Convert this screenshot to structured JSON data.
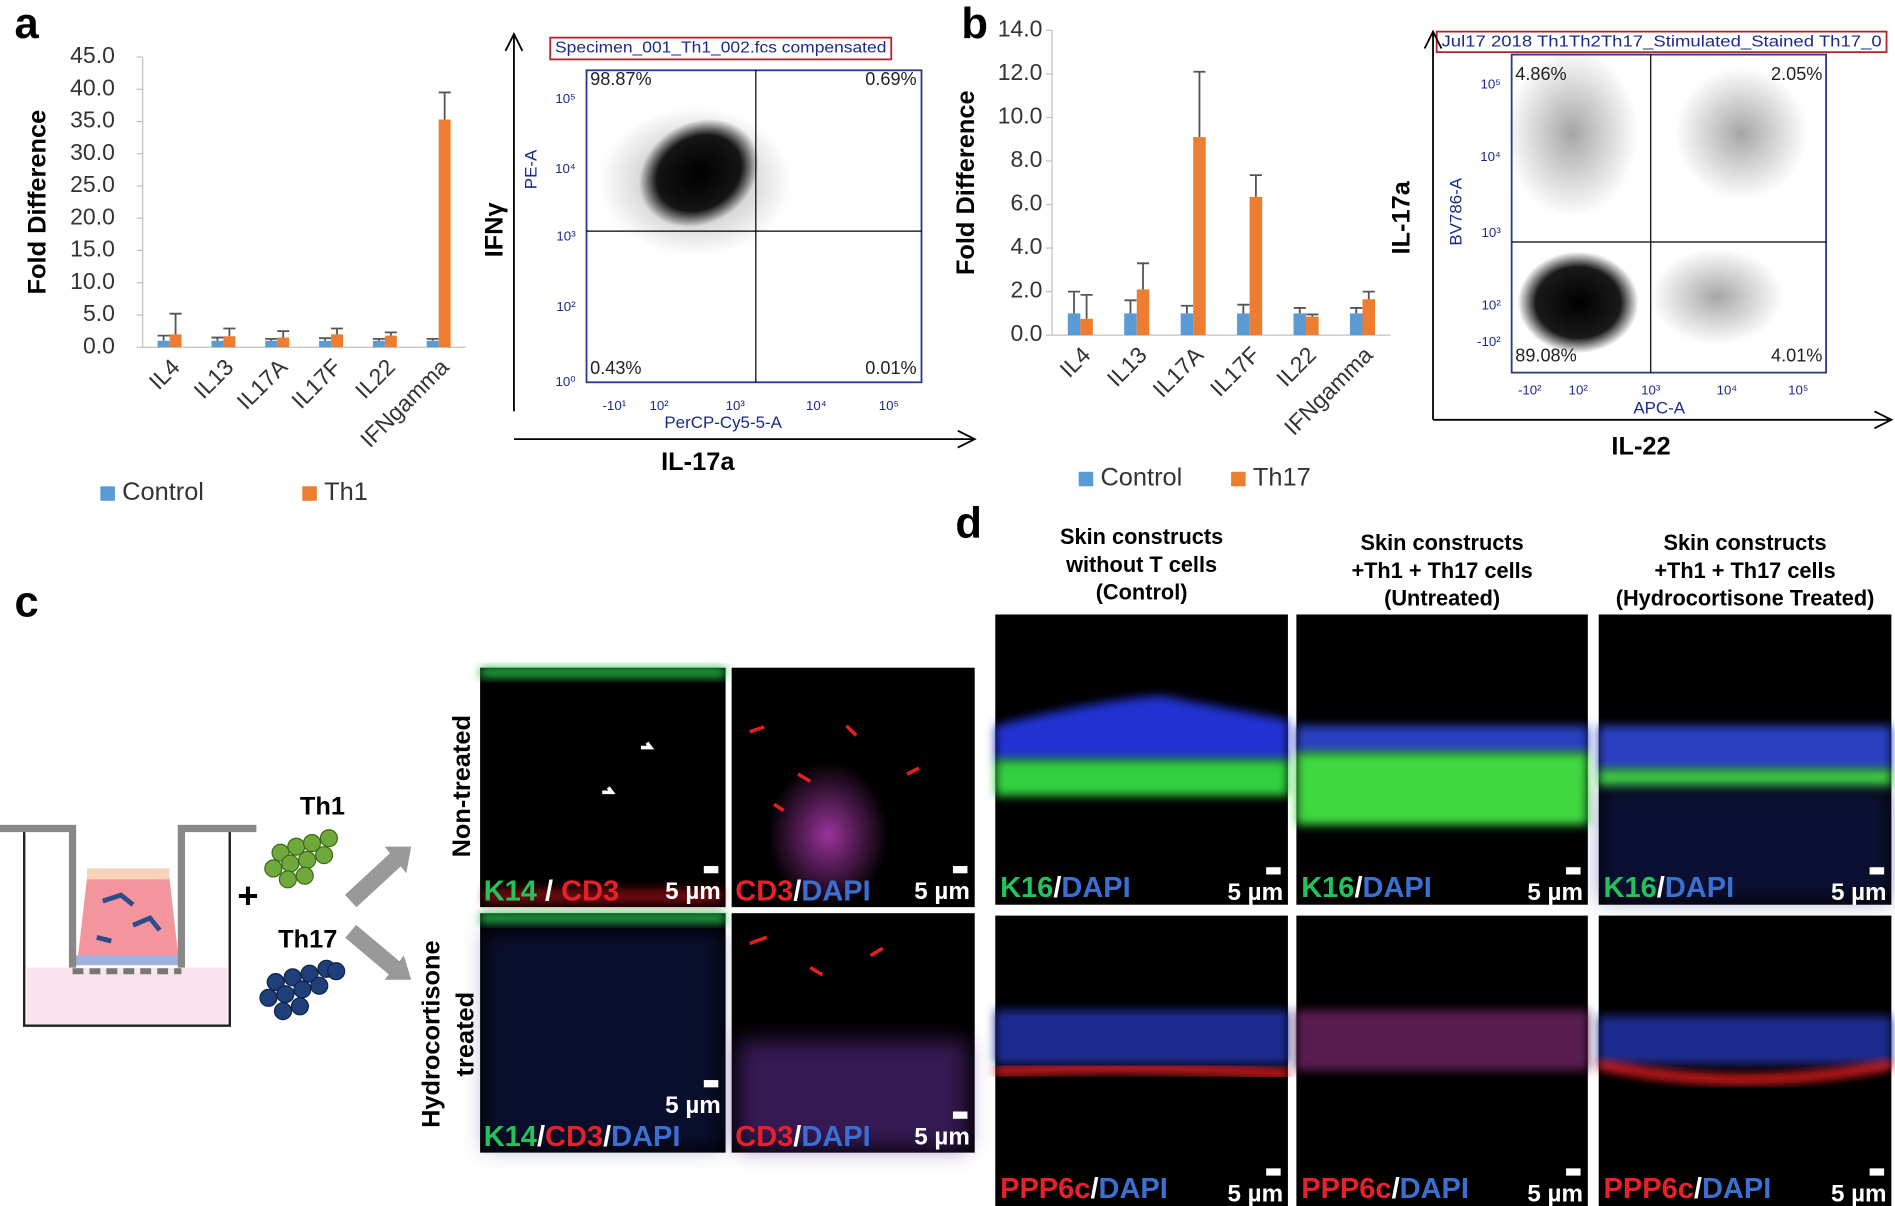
{
  "chart_data": [
    {
      "type": "bar",
      "ylabel": "Fold Difference",
      "legend": "bottom",
      "grid": false,
      "categories": [
        "IL4",
        "IL13",
        "IL17A",
        "IL17F",
        "IL22",
        "IFNgamma"
      ],
      "series": [
        {
          "name": "Control",
          "color": "#5b9bd5",
          "values": [
            1.0,
            1.0,
            1.0,
            1.0,
            1.0,
            1.0
          ],
          "errors": [
            0.8,
            0.5,
            0.3,
            0.4,
            0.3,
            0.3
          ]
        },
        {
          "name": "Th1",
          "color": "#ed7d31",
          "values": [
            2.0,
            1.7,
            1.5,
            2.0,
            1.8,
            35.3
          ],
          "errors": [
            3.2,
            1.2,
            1.0,
            0.9,
            0.5,
            4.2
          ]
        }
      ],
      "ylim": [
        0,
        45
      ],
      "yticks": [
        {
          "value": 0,
          "label": "0.0"
        },
        {
          "value": 5,
          "label": "5.0"
        },
        {
          "value": 10,
          "label": "10.0"
        },
        {
          "value": 15,
          "label": "15.0"
        },
        {
          "value": 20,
          "label": "20.0"
        },
        {
          "value": 25,
          "label": "25.0"
        },
        {
          "value": 30,
          "label": "30.0"
        },
        {
          "value": 35,
          "label": "35.0"
        },
        {
          "value": 40,
          "label": "40.0"
        },
        {
          "value": 45,
          "label": "45.0"
        }
      ]
    },
    {
      "type": "bar",
      "ylabel": "Fold Difference",
      "legend": "bottom",
      "grid": false,
      "categories": [
        "IL4",
        "IL13",
        "IL17A",
        "IL17F",
        "IL22",
        "IFNgamma"
      ],
      "series": [
        {
          "name": "Control",
          "color": "#5b9bd5",
          "values": [
            1.0,
            1.0,
            1.0,
            1.0,
            1.0,
            1.0
          ],
          "errors": [
            1.0,
            0.6,
            0.35,
            0.4,
            0.25,
            0.25
          ]
        },
        {
          "name": "Th17",
          "color": "#ed7d31",
          "values": [
            0.75,
            2.1,
            9.1,
            6.35,
            0.85,
            1.65
          ],
          "errors": [
            1.1,
            1.2,
            3.0,
            1.0,
            0.1,
            0.35
          ]
        }
      ],
      "ylim": [
        0,
        14
      ],
      "yticks": [
        {
          "value": 0,
          "label": "0.0"
        },
        {
          "value": 2,
          "label": "2.0"
        },
        {
          "value": 4,
          "label": "4.0"
        },
        {
          "value": 6,
          "label": "6.0"
        },
        {
          "value": 8,
          "label": "8.0"
        },
        {
          "value": 10,
          "label": "10.0"
        },
        {
          "value": 12,
          "label": "12.0"
        },
        {
          "value": 14,
          "label": "14.0"
        }
      ]
    }
  ],
  "panel_labels": [
    "a",
    "b",
    "c",
    "d"
  ],
  "flow_plots": [
    {
      "title": "Specimen_001_Th1_002.fcs compensated",
      "y_channel": "PE-A",
      "x_channel": "PerCP-Cy5-5-A",
      "y_marker": "IFNγ",
      "x_marker": "IL-17a",
      "quadrants": [
        "98.87%",
        "0.69%",
        "0.43%",
        "0.01%"
      ],
      "yticks": [
        "10⁵",
        "10⁴",
        "10³",
        "10²",
        "10⁰"
      ],
      "xticks": [
        "-10¹",
        "10²",
        "10³",
        "10⁴",
        "10⁵"
      ]
    },
    {
      "title": "Jul17 2018 Th1Th2Th17_Stimulated_Stained Th17_0",
      "y_channel": "BV786-A",
      "x_channel": "APC-A",
      "y_marker": "IL-17a",
      "x_marker": "IL-22",
      "quadrants": [
        "4.86%",
        "2.05%",
        "89.08%",
        "4.01%"
      ],
      "yticks": [
        "10⁵",
        "10⁴",
        "10³",
        "10²",
        "-10²"
      ],
      "xticks": [
        "-10²",
        "10²",
        "10³",
        "10⁴",
        "10⁵"
      ]
    }
  ],
  "panel_c": {
    "cells": [
      "Th1",
      "Th17"
    ],
    "plus": "+",
    "scale_bar": "5 µm",
    "rows": [
      [
        "Non-treated"
      ],
      [
        "Hydrocortisone",
        "treated"
      ]
    ],
    "labels": [
      {
        "text": [
          "K14",
          " / ",
          "CD3"
        ],
        "colors": [
          "#22c35a",
          "#ffffff",
          "#e8202a"
        ]
      },
      {
        "text": [
          "CD3",
          "/",
          "DAPI"
        ],
        "colors": [
          "#e8202a",
          "#ffffff",
          "#3b6fd1"
        ]
      },
      {
        "text": [
          "K14",
          "/",
          "CD3",
          "/",
          "DAPI"
        ],
        "colors": [
          "#22c35a",
          "#ffffff",
          "#e8202a",
          "#ffffff",
          "#3b6fd1"
        ]
      },
      {
        "text": [
          "CD3",
          "/",
          "DAPI"
        ],
        "colors": [
          "#e8202a",
          "#ffffff",
          "#3b6fd1"
        ]
      }
    ]
  },
  "panel_d": {
    "scale_bar": "5 µm",
    "headers": [
      [
        "Skin constructs",
        "without T cells",
        "(Control)"
      ],
      [
        "Skin constructs",
        "+Th1 + Th17 cells",
        "(Untreated)"
      ],
      [
        "Skin constructs",
        "+Th1 + Th17 cells",
        "(Hydrocortisone Treated)"
      ]
    ],
    "labels": [
      {
        "text": [
          "K16",
          "/",
          "DAPI"
        ],
        "colors": [
          "#22c35a",
          "#ffffff",
          "#3b6fd1"
        ]
      },
      {
        "text": [
          "PPP6c",
          "/",
          "DAPI"
        ],
        "colors": [
          "#e8202a",
          "#ffffff",
          "#3b6fd1"
        ]
      }
    ]
  }
}
